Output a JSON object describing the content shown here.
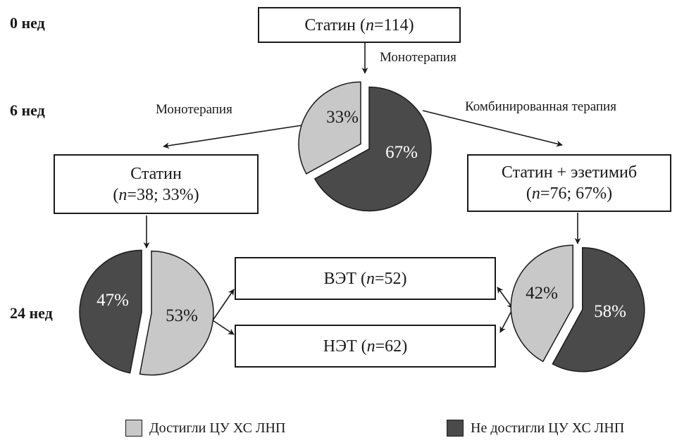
{
  "colors": {
    "achieved": "#c8c8c8",
    "not_achieved": "#4a4a4a",
    "stroke": "#1a1a1a"
  },
  "weeks": {
    "w0": "0 нед",
    "w6": "6 нед",
    "w24": "24 нед"
  },
  "boxes": {
    "start": {
      "name": "Статин",
      "n_prefix": "n",
      "n_value": "=114"
    },
    "mono": {
      "name": "Статин",
      "detail_prefix": "(",
      "n_prefix": "n",
      "detail_rest": "=38; 33%)"
    },
    "combo": {
      "name": "Статин + эзетимиб",
      "detail_prefix": "(",
      "n_prefix": "n",
      "detail_rest": "=76; 67%)"
    },
    "vet": {
      "name": "ВЭТ",
      "n_prefix": "n",
      "n_value": "=52"
    },
    "net": {
      "name": "НЭТ",
      "n_prefix": "n",
      "n_value": "=62"
    }
  },
  "arrow_labels": {
    "mono_top": "Монотерапия",
    "mono_left": "Монотерапия",
    "combo": "Комбинированная терапия"
  },
  "pies": {
    "week6": {
      "achieved": 33,
      "not_achieved": 67,
      "achieved_label": "33%",
      "not_achieved_label": "67%"
    },
    "mono24": {
      "achieved": 53,
      "not_achieved": 47,
      "achieved_label": "53%",
      "not_achieved_label": "47%"
    },
    "combo24": {
      "achieved": 42,
      "not_achieved": 58,
      "achieved_label": "42%",
      "not_achieved_label": "58%"
    }
  },
  "legend": {
    "achieved": "Достигли ЦУ ХС ЛНП",
    "not_achieved": "Не достигли ЦУ ХС ЛНП"
  }
}
